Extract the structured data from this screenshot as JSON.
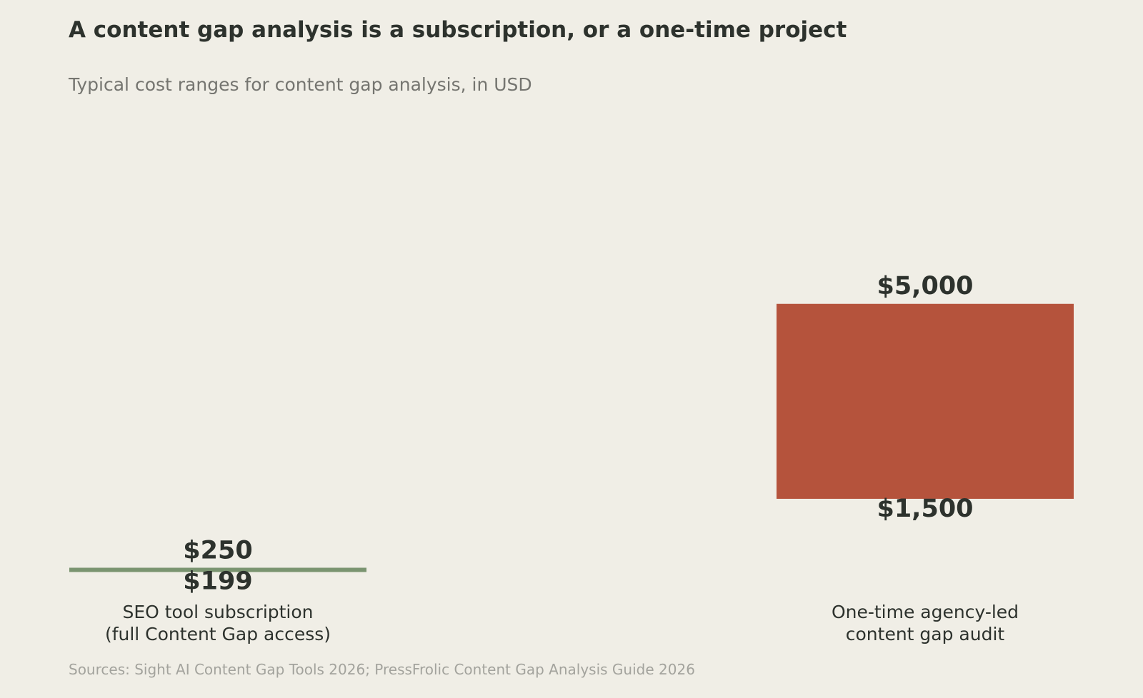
{
  "title": "A content gap analysis is a subscription, or a one-time project",
  "subtitle": "Typical cost ranges for content gap analysis, in USD",
  "source": "Sources: Sight AI Content Gap Tools 2026; PressFrolic Content Gap Analysis Guide 2026",
  "colors": {
    "background": "#f0eee6",
    "subscription": "#7a9470",
    "agency": "#b5533c",
    "text": "#2d322d"
  },
  "chart_data": {
    "type": "bar",
    "subtype": "floating-range",
    "categories": [
      [
        "SEO tool subscription",
        "(full Content Gap access)"
      ],
      [
        "One-time agency-led",
        "content gap audit"
      ]
    ],
    "series": [
      {
        "low": [
          199,
          1500
        ],
        "high": [
          250,
          5000
        ],
        "low_labels": [
          "$199",
          "$1,500"
        ],
        "high_labels": [
          "$250",
          "$5,000"
        ]
      }
    ],
    "ylim": [
      0,
      5700
    ],
    "grid": false,
    "legend": "none",
    "xlabel": "",
    "ylabel": ""
  }
}
